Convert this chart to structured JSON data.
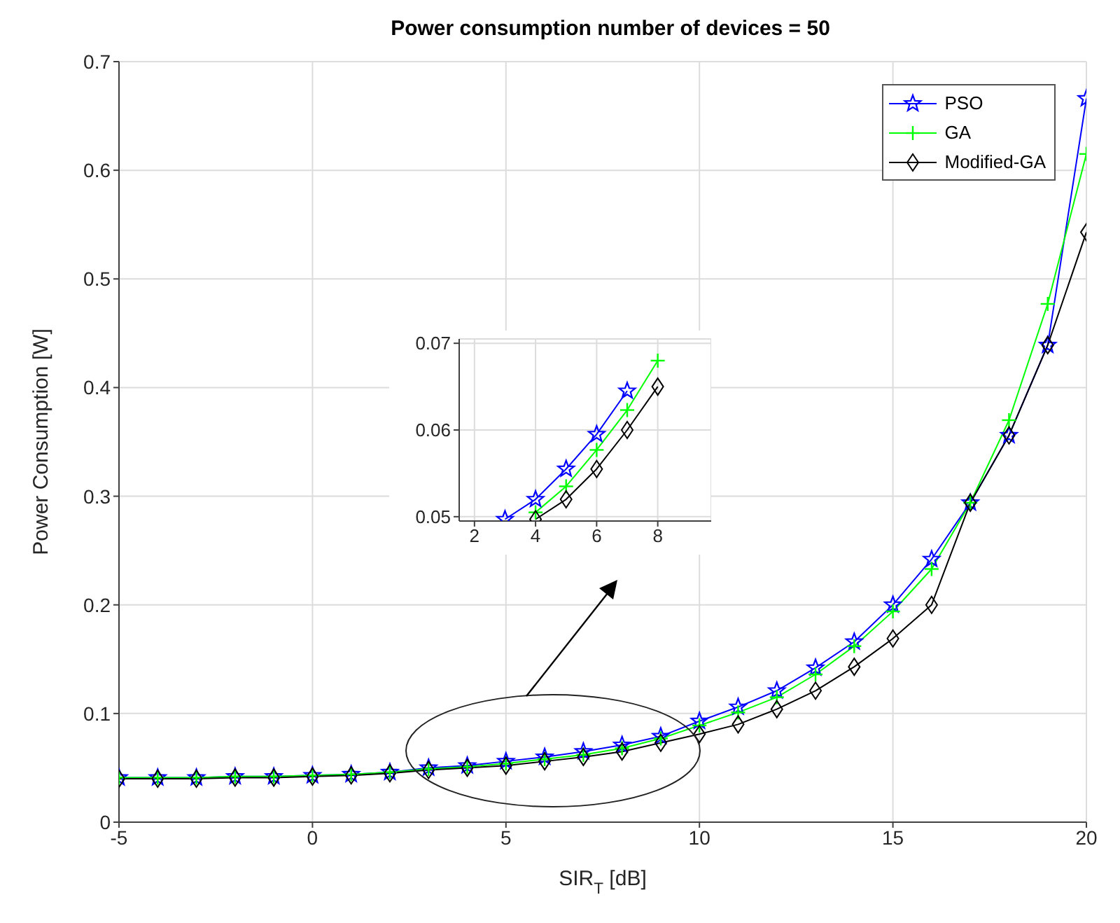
{
  "chart_data": [
    {
      "type": "line",
      "title": "Power consumption number of devices = 50",
      "xlabel": "SIR$_{T}$ [dB]",
      "ylabel": "Power Consumption [W]",
      "x": [
        -5,
        -4,
        -3,
        -2,
        -1,
        0,
        1,
        2,
        3,
        4,
        5,
        6,
        7,
        8,
        9,
        10,
        11,
        12,
        13,
        14,
        15,
        16,
        17,
        18,
        19,
        20
      ],
      "series": [
        {
          "name": "PSO",
          "color": "#0000ff",
          "marker": "star",
          "values": [
            0.041,
            0.041,
            0.041,
            0.042,
            0.042,
            0.043,
            0.044,
            0.046,
            0.05,
            0.052,
            0.056,
            0.06,
            0.065,
            0.071,
            0.079,
            0.093,
            0.106,
            0.121,
            0.142,
            0.166,
            0.2,
            0.242,
            0.294,
            0.356,
            0.439,
            0.666
          ]
        },
        {
          "name": "GA",
          "color": "#00ff00",
          "marker": "cross",
          "values": [
            0.041,
            0.041,
            0.041,
            0.042,
            0.042,
            0.043,
            0.044,
            0.046,
            0.049,
            0.051,
            0.054,
            0.058,
            0.062,
            0.068,
            0.077,
            0.089,
            0.101,
            0.115,
            0.136,
            0.162,
            0.194,
            0.233,
            0.294,
            0.37,
            0.477,
            0.615
          ]
        },
        {
          "name": "Modified-GA",
          "color": "#000000",
          "marker": "diamond",
          "values": [
            0.04,
            0.04,
            0.04,
            0.041,
            0.041,
            0.042,
            0.043,
            0.045,
            0.048,
            0.05,
            0.052,
            0.056,
            0.06,
            0.065,
            0.073,
            0.081,
            0.09,
            0.104,
            0.121,
            0.143,
            0.169,
            0.2,
            0.294,
            0.356,
            0.439,
            0.543
          ]
        }
      ],
      "xlim": [
        -5,
        20
      ],
      "xticks": [
        -5,
        0,
        5,
        10,
        15,
        20
      ],
      "ylim": [
        0,
        0.7
      ],
      "yticks": [
        0,
        0.1,
        0.2,
        0.3,
        0.4,
        0.5,
        0.6,
        0.7
      ],
      "grid": true,
      "legend": "top right"
    },
    {
      "type": "line",
      "x": [
        3,
        4,
        5,
        6,
        7,
        8
      ],
      "series": [
        {
          "color": "#0000ff",
          "marker": "star",
          "values": [
            0.0497,
            0.052,
            0.0555,
            0.0595,
            0.0645,
            null
          ]
        },
        {
          "color": "#00ff00",
          "marker": "cross",
          "values": [
            null,
            0.0505,
            0.0535,
            0.0577,
            0.0623,
            0.068
          ]
        },
        {
          "color": "#000000",
          "marker": "diamond",
          "values": [
            null,
            0.0497,
            0.052,
            0.0555,
            0.06,
            0.065
          ]
        }
      ],
      "xlim": [
        1.5,
        9.75
      ],
      "xticks": [
        2,
        4,
        6,
        8
      ],
      "ylim": [
        0.0495,
        0.0705
      ],
      "yticks": [
        0.05,
        0.06,
        0.07
      ],
      "grid": true
    }
  ]
}
